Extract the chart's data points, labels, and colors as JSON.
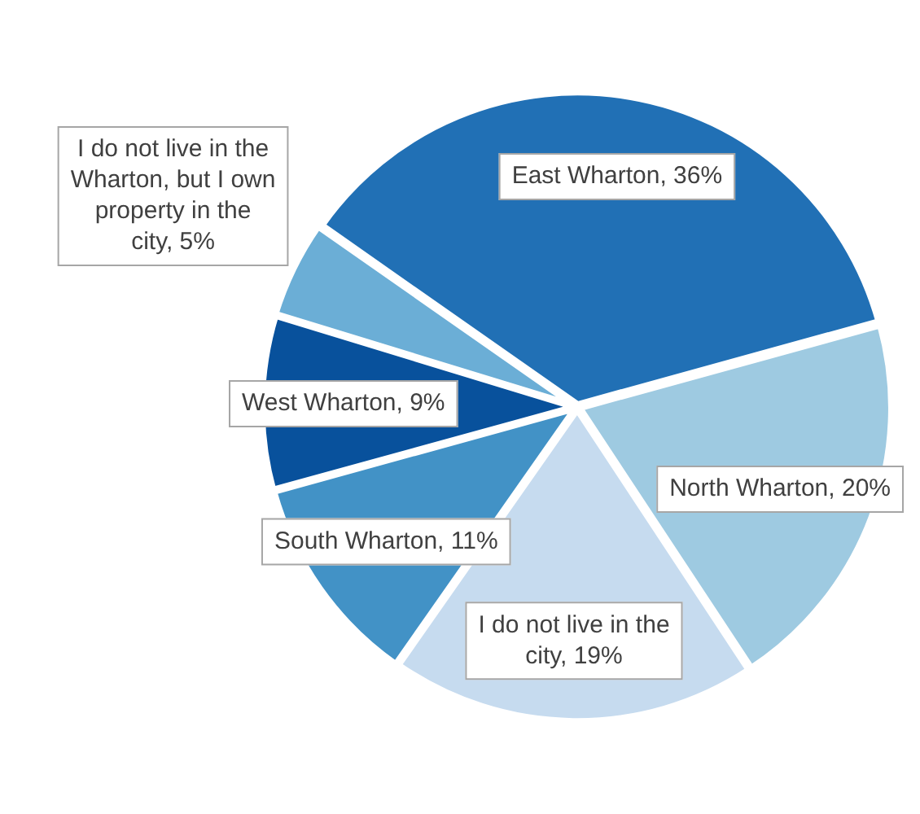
{
  "chart_data": {
    "type": "pie",
    "categories": [
      "East Wharton",
      "North Wharton",
      "I do not live in the city",
      "South Wharton",
      "West Wharton",
      "I do not live in the Wharton, but I own property in the city"
    ],
    "values": [
      36,
      20,
      19,
      11,
      9,
      5
    ],
    "value_labels": [
      "36%",
      "20%",
      "19%",
      "11%",
      "9%",
      "5%"
    ],
    "colors": [
      "#2170b5",
      "#9ecae1",
      "#c6dbef",
      "#4292c6",
      "#08519c",
      "#6baed6"
    ],
    "legend": false
  }
}
